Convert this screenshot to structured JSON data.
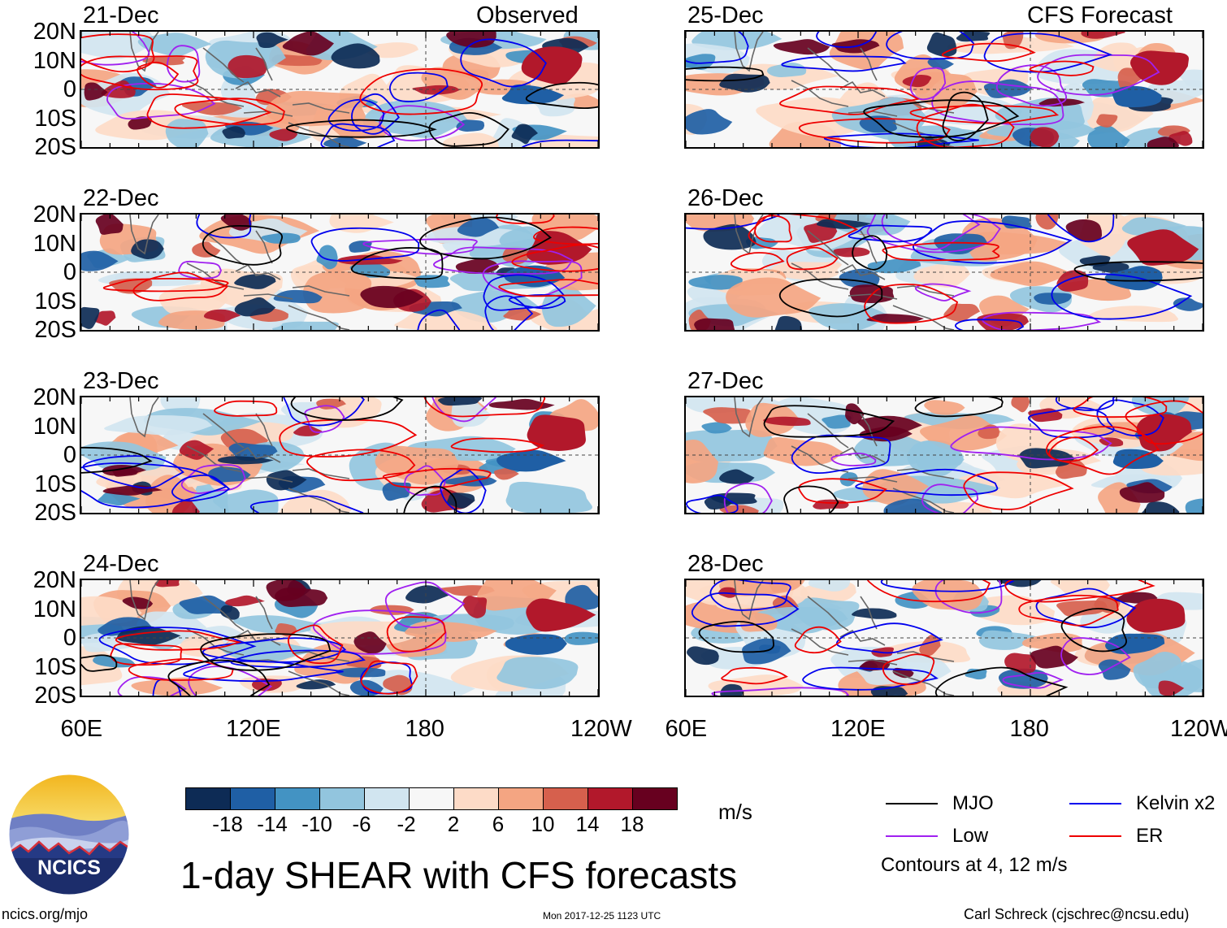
{
  "chart_data": {
    "type": "heatmap",
    "title": "1-day SHEAR with CFS forecasts",
    "columns": [
      {
        "title": "Observed",
        "panels": [
          "21-Dec",
          "22-Dec",
          "23-Dec",
          "24-Dec"
        ]
      },
      {
        "title": "CFS Forecast",
        "panels": [
          "25-Dec",
          "26-Dec",
          "27-Dec",
          "28-Dec"
        ]
      }
    ],
    "lat_ticks": [
      "20N",
      "10N",
      "0",
      "10S",
      "20S"
    ],
    "lon_ticks": [
      "60E",
      "120E",
      "180",
      "120W"
    ],
    "xlim_deg_east": [
      60,
      240
    ],
    "ylim_deg": [
      -20,
      20
    ],
    "colorbar": {
      "unit": "m/s",
      "labels": [
        "-18",
        "-14",
        "-10",
        "-6",
        "-2",
        "2",
        "6",
        "10",
        "14",
        "18"
      ],
      "colors": [
        "#0d2b55",
        "#1f5fa5",
        "#4393c3",
        "#92c5de",
        "#d1e5f0",
        "#f7f7f7",
        "#fddbc7",
        "#f4a582",
        "#d6604d",
        "#b2182b",
        "#67001f"
      ]
    },
    "legend": [
      {
        "name": "MJO",
        "color": "#000000"
      },
      {
        "name": "Kelvin x2",
        "color": "#0000ee"
      },
      {
        "name": "Low",
        "color": "#a020f0"
      },
      {
        "name": "ER",
        "color": "#ee0000"
      }
    ],
    "contour_note": "Contours at 4, 12 m/s"
  },
  "footer": {
    "logo_text": "NCICS",
    "url": "ncics.org/mjo",
    "timestamp": "Mon 2017-12-25 1123 UTC",
    "author": "Carl Schreck (cjschrec@ncsu.edu)"
  }
}
